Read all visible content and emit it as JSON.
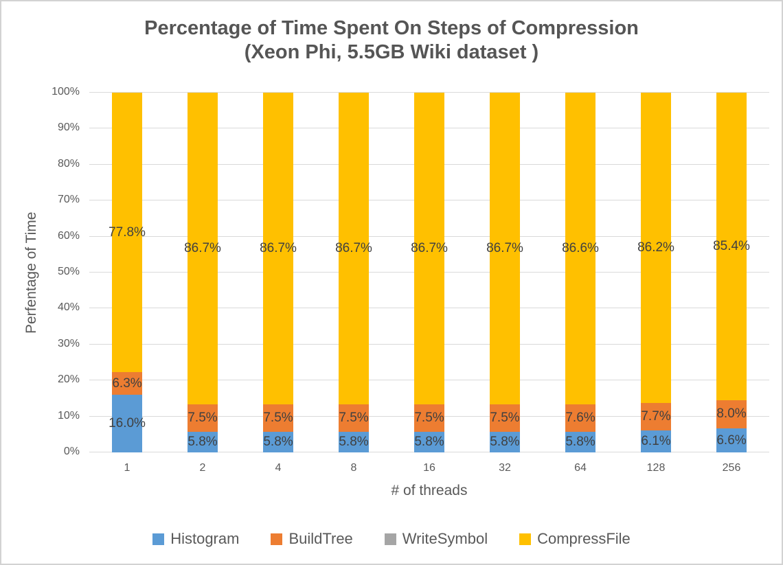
{
  "title": {
    "line1": "Percentage of Time Spent On Steps of Compression",
    "line2": "(Xeon Phi, 5.5GB Wiki dataset )"
  },
  "chart_data": {
    "type": "bar",
    "stacked": true,
    "percent_stacked": true,
    "title": "Percentage of Time Spent On Steps of Compression (Xeon Phi, 5.5GB Wiki dataset )",
    "xlabel": "# of threads",
    "ylabel": "Perfentage of Time",
    "categories": [
      "1",
      "2",
      "4",
      "8",
      "16",
      "32",
      "64",
      "128",
      "256"
    ],
    "series": [
      {
        "name": "Histogram",
        "color": "#5B9BD5",
        "values": [
          16.0,
          5.8,
          5.8,
          5.8,
          5.8,
          5.8,
          5.8,
          6.1,
          6.6
        ],
        "labels": [
          "16.0%",
          "5.8%",
          "5.8%",
          "5.8%",
          "5.8%",
          "5.8%",
          "5.8%",
          "6.1%",
          "6.6%"
        ]
      },
      {
        "name": "BuildTree",
        "color": "#ED7D31",
        "values": [
          6.3,
          7.5,
          7.5,
          7.5,
          7.5,
          7.5,
          7.6,
          7.7,
          8.0
        ],
        "labels": [
          "6.3%",
          "7.5%",
          "7.5%",
          "7.5%",
          "7.5%",
          "7.5%",
          "7.6%",
          "7.7%",
          "8.0%"
        ]
      },
      {
        "name": "WriteSymbol",
        "color": "#A5A5A5",
        "values": [
          0,
          0,
          0,
          0,
          0,
          0,
          0,
          0,
          0
        ],
        "labels": [
          "",
          "",
          "",
          "",
          "",
          "",
          "",
          "",
          ""
        ]
      },
      {
        "name": "CompressFile",
        "color": "#FFC000",
        "values": [
          77.8,
          86.7,
          86.7,
          86.7,
          86.7,
          86.7,
          86.6,
          86.2,
          85.4
        ],
        "labels": [
          "77.8%",
          "86.7%",
          "86.7%",
          "86.7%",
          "86.7%",
          "86.7%",
          "86.6%",
          "86.2%",
          "85.4%"
        ]
      }
    ],
    "ylim": [
      0,
      100
    ],
    "yticks": [
      "0%",
      "10%",
      "20%",
      "30%",
      "40%",
      "50%",
      "60%",
      "70%",
      "80%",
      "90%",
      "100%"
    ],
    "grid": true,
    "gridline_color": "#D9D9D9",
    "legend_position": "bottom",
    "label_color": "#404040",
    "axis_text_color": "#595959"
  }
}
